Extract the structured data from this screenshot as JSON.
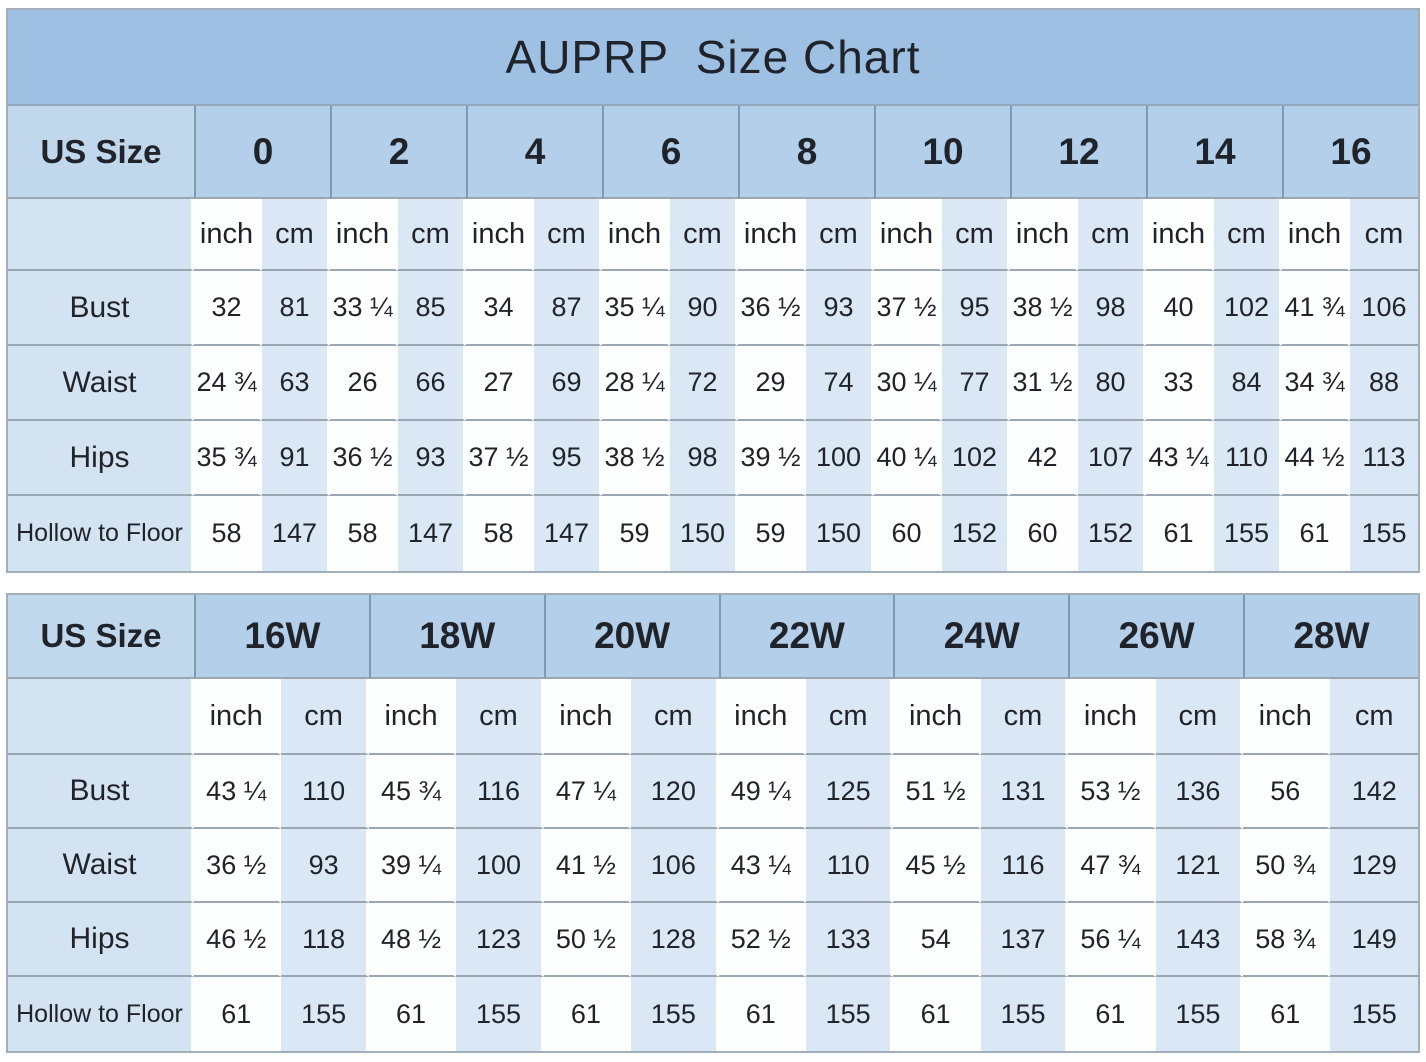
{
  "title": "AUPRP  Size Chart",
  "colors": {
    "title_bg": "#9dc0e3",
    "header_label_bg": "#c1d7ec",
    "header_size_bg": "#b4cfe9",
    "header_divider": "#8099ae",
    "label_cell_bg": "#d3e3f1",
    "cm_cell_bg": "#dae8f5",
    "inch_cell_bg": "#fdfefe",
    "row_line": "#9aa7b3",
    "column_gap": "#ffffff",
    "text": "#20242a"
  },
  "chart_data": {
    "type": "table",
    "title": "AUPRP  Size Chart",
    "row_header_label": "US Size",
    "unit_columns": [
      "inch",
      "cm"
    ],
    "tables": [
      {
        "sizes": [
          "0",
          "2",
          "4",
          "6",
          "8",
          "10",
          "12",
          "14",
          "16"
        ],
        "rows": [
          {
            "label": "Bust",
            "inch": [
              "32",
              "33 ¼",
              "34",
              "35 ¼",
              "36 ½",
              "37 ½",
              "38 ½",
              "40",
              "41 ¾"
            ],
            "cm": [
              "81",
              "85",
              "87",
              "90",
              "93",
              "95",
              "98",
              "102",
              "106"
            ]
          },
          {
            "label": "Waist",
            "inch": [
              "24 ¾",
              "26",
              "27",
              "28 ¼",
              "29",
              "30 ¼",
              "31 ½",
              "33",
              "34 ¾"
            ],
            "cm": [
              "63",
              "66",
              "69",
              "72",
              "74",
              "77",
              "80",
              "84",
              "88"
            ]
          },
          {
            "label": "Hips",
            "inch": [
              "35 ¾",
              "36 ½",
              "37 ½",
              "38 ½",
              "39 ½",
              "40 ¼",
              "42",
              "43 ¼",
              "44 ½"
            ],
            "cm": [
              "91",
              "93",
              "95",
              "98",
              "100",
              "102",
              "107",
              "110",
              "113"
            ]
          },
          {
            "label": "Hollow to Floor",
            "inch": [
              "58",
              "58",
              "58",
              "59",
              "59",
              "60",
              "60",
              "61",
              "61"
            ],
            "cm": [
              "147",
              "147",
              "147",
              "150",
              "150",
              "152",
              "152",
              "155",
              "155"
            ]
          }
        ]
      },
      {
        "sizes": [
          "16W",
          "18W",
          "20W",
          "22W",
          "24W",
          "26W",
          "28W"
        ],
        "rows": [
          {
            "label": "Bust",
            "inch": [
              "43 ¼",
              "45 ¾",
              "47 ¼",
              "49 ¼",
              "51 ½",
              "53 ½",
              "56"
            ],
            "cm": [
              "110",
              "116",
              "120",
              "125",
              "131",
              "136",
              "142"
            ]
          },
          {
            "label": "Waist",
            "inch": [
              "36 ½",
              "39 ¼",
              "41 ½",
              "43 ¼",
              "45 ½",
              "47 ¾",
              "50 ¾"
            ],
            "cm": [
              "93",
              "100",
              "106",
              "110",
              "116",
              "121",
              "129"
            ]
          },
          {
            "label": "Hips",
            "inch": [
              "46 ½",
              "48 ½",
              "50 ½",
              "52 ½",
              "54",
              "56 ¼",
              "58 ¾"
            ],
            "cm": [
              "118",
              "123",
              "128",
              "133",
              "137",
              "143",
              "149"
            ]
          },
          {
            "label": "Hollow to Floor",
            "inch": [
              "61",
              "61",
              "61",
              "61",
              "61",
              "61",
              "61"
            ],
            "cm": [
              "155",
              "155",
              "155",
              "155",
              "155",
              "155",
              "155"
            ]
          }
        ]
      }
    ]
  }
}
